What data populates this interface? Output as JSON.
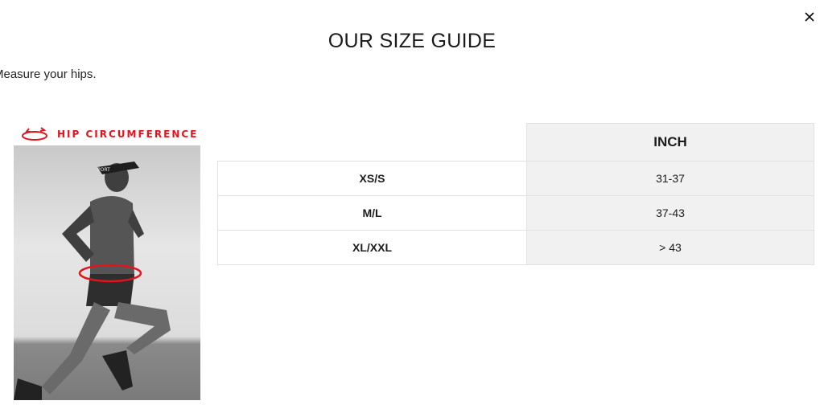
{
  "modal": {
    "title": "OUR SIZE GUIDE",
    "close_icon": "close-icon",
    "intro": "Measure your hips."
  },
  "figure": {
    "label": "HIP CIRCUMFERENCE",
    "accent_color": "#e2141b",
    "cap_text": "PORT"
  },
  "table": {
    "header": "INCH",
    "rows": [
      {
        "size": "XS/S",
        "inch": "31-37"
      },
      {
        "size": "M/L",
        "inch": "37-43"
      },
      {
        "size": "XL/XXL",
        "inch": "> 43"
      }
    ]
  }
}
